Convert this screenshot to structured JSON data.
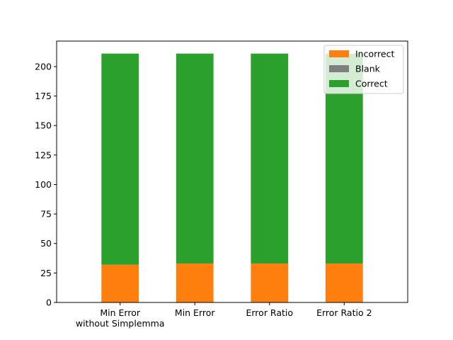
{
  "chart_data": {
    "type": "bar",
    "stacked": true,
    "title": "",
    "xlabel": "",
    "ylabel": "",
    "ylim": [
      0,
      221.6
    ],
    "yticks": [
      0,
      25,
      50,
      75,
      100,
      125,
      150,
      175,
      200
    ],
    "categories": [
      [
        "Min Error",
        "without Simplemma"
      ],
      [
        "Min Error"
      ],
      [
        "Error Ratio"
      ],
      [
        "Error Ratio 2"
      ]
    ],
    "series": [
      {
        "name": "Incorrect",
        "color": "#ff7f0e",
        "values": [
          32,
          33,
          33,
          33
        ]
      },
      {
        "name": "Blank",
        "color": "#7f7f7f",
        "values": [
          0,
          0,
          0,
          0
        ]
      },
      {
        "name": "Correct",
        "color": "#2ca02c",
        "values": [
          179,
          178,
          178,
          178
        ]
      }
    ],
    "grid": false,
    "legend_position": "top-right"
  }
}
